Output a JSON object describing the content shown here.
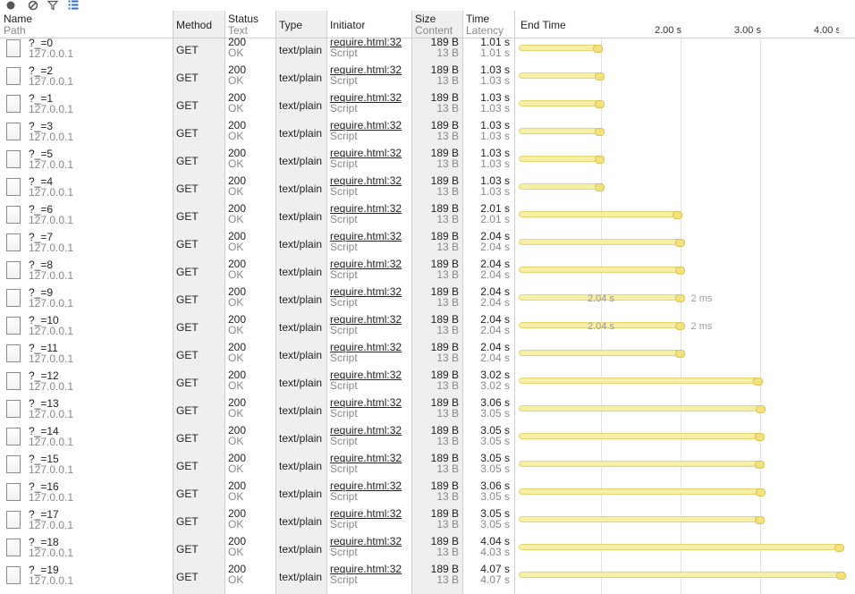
{
  "toolbar": {
    "record_icon": "record-icon",
    "clear_icon": "clear-icon",
    "filter_icon": "filter-icon",
    "large_rows_icon": "large-rows-icon"
  },
  "columns": {
    "name": "Name",
    "path": "Path",
    "method": "Method",
    "status": "Status",
    "text": "Text",
    "type": "Type",
    "initiator": "Initiator",
    "size": "Size",
    "content": "Content",
    "time": "Time",
    "latency": "Latency",
    "timeline": "End Time"
  },
  "timeline": {
    "ticks": [
      "2.00 s",
      "3.00 s",
      "4.00 s"
    ]
  },
  "rows": [
    {
      "name": "?_=0",
      "path": "127.0.0.1",
      "method": "GET",
      "status": "200",
      "status_text": "OK",
      "type": "text/plain",
      "initiator": "require.html:32",
      "initiator_type": "Script",
      "size": "189 B",
      "content": "13 B",
      "time": "1.01 s",
      "latency": "1.01 s",
      "end": 1.01
    },
    {
      "name": "?_=2",
      "path": "127.0.0.1",
      "method": "GET",
      "status": "200",
      "status_text": "OK",
      "type": "text/plain",
      "initiator": "require.html:32",
      "initiator_type": "Script",
      "size": "189 B",
      "content": "13 B",
      "time": "1.03 s",
      "latency": "1.03 s",
      "end": 1.03
    },
    {
      "name": "?_=1",
      "path": "127.0.0.1",
      "method": "GET",
      "status": "200",
      "status_text": "OK",
      "type": "text/plain",
      "initiator": "require.html:32",
      "initiator_type": "Script",
      "size": "189 B",
      "content": "13 B",
      "time": "1.03 s",
      "latency": "1.03 s",
      "end": 1.03
    },
    {
      "name": "?_=3",
      "path": "127.0.0.1",
      "method": "GET",
      "status": "200",
      "status_text": "OK",
      "type": "text/plain",
      "initiator": "require.html:32",
      "initiator_type": "Script",
      "size": "189 B",
      "content": "13 B",
      "time": "1.03 s",
      "latency": "1.03 s",
      "end": 1.03
    },
    {
      "name": "?_=5",
      "path": "127.0.0.1",
      "method": "GET",
      "status": "200",
      "status_text": "OK",
      "type": "text/plain",
      "initiator": "require.html:32",
      "initiator_type": "Script",
      "size": "189 B",
      "content": "13 B",
      "time": "1.03 s",
      "latency": "1.03 s",
      "end": 1.03
    },
    {
      "name": "?_=4",
      "path": "127.0.0.1",
      "method": "GET",
      "status": "200",
      "status_text": "OK",
      "type": "text/plain",
      "initiator": "require.html:32",
      "initiator_type": "Script",
      "size": "189 B",
      "content": "13 B",
      "time": "1.03 s",
      "latency": "1.03 s",
      "end": 1.03
    },
    {
      "name": "?_=6",
      "path": "127.0.0.1",
      "method": "GET",
      "status": "200",
      "status_text": "OK",
      "type": "text/plain",
      "initiator": "require.html:32",
      "initiator_type": "Script",
      "size": "189 B",
      "content": "13 B",
      "time": "2.01 s",
      "latency": "2.01 s",
      "end": 2.01
    },
    {
      "name": "?_=7",
      "path": "127.0.0.1",
      "method": "GET",
      "status": "200",
      "status_text": "OK",
      "type": "text/plain",
      "initiator": "require.html:32",
      "initiator_type": "Script",
      "size": "189 B",
      "content": "13 B",
      "time": "2.04 s",
      "latency": "2.04 s",
      "end": 2.04
    },
    {
      "name": "?_=8",
      "path": "127.0.0.1",
      "method": "GET",
      "status": "200",
      "status_text": "OK",
      "type": "text/plain",
      "initiator": "require.html:32",
      "initiator_type": "Script",
      "size": "189 B",
      "content": "13 B",
      "time": "2.04 s",
      "latency": "2.04 s",
      "end": 2.04
    },
    {
      "name": "?_=9",
      "path": "127.0.0.1",
      "method": "GET",
      "status": "200",
      "status_text": "OK",
      "type": "text/plain",
      "initiator": "require.html:32",
      "initiator_type": "Script",
      "size": "189 B",
      "content": "13 B",
      "time": "2.04 s",
      "latency": "2.04 s",
      "end": 2.04,
      "bar_left": "2.04 s",
      "bar_right": "2 ms"
    },
    {
      "name": "?_=10",
      "path": "127.0.0.1",
      "method": "GET",
      "status": "200",
      "status_text": "OK",
      "type": "text/plain",
      "initiator": "require.html:32",
      "initiator_type": "Script",
      "size": "189 B",
      "content": "13 B",
      "time": "2.04 s",
      "latency": "2.04 s",
      "end": 2.04,
      "bar_left": "2.04 s",
      "bar_right": "2 ms"
    },
    {
      "name": "?_=11",
      "path": "127.0.0.1",
      "method": "GET",
      "status": "200",
      "status_text": "OK",
      "type": "text/plain",
      "initiator": "require.html:32",
      "initiator_type": "Script",
      "size": "189 B",
      "content": "13 B",
      "time": "2.04 s",
      "latency": "2.04 s",
      "end": 2.04
    },
    {
      "name": "?_=12",
      "path": "127.0.0.1",
      "method": "GET",
      "status": "200",
      "status_text": "OK",
      "type": "text/plain",
      "initiator": "require.html:32",
      "initiator_type": "Script",
      "size": "189 B",
      "content": "13 B",
      "time": "3.02 s",
      "latency": "3.02 s",
      "end": 3.02
    },
    {
      "name": "?_=13",
      "path": "127.0.0.1",
      "method": "GET",
      "status": "200",
      "status_text": "OK",
      "type": "text/plain",
      "initiator": "require.html:32",
      "initiator_type": "Script",
      "size": "189 B",
      "content": "13 B",
      "time": "3.06 s",
      "latency": "3.05 s",
      "end": 3.06
    },
    {
      "name": "?_=14",
      "path": "127.0.0.1",
      "method": "GET",
      "status": "200",
      "status_text": "OK",
      "type": "text/plain",
      "initiator": "require.html:32",
      "initiator_type": "Script",
      "size": "189 B",
      "content": "13 B",
      "time": "3.05 s",
      "latency": "3.05 s",
      "end": 3.05
    },
    {
      "name": "?_=15",
      "path": "127.0.0.1",
      "method": "GET",
      "status": "200",
      "status_text": "OK",
      "type": "text/plain",
      "initiator": "require.html:32",
      "initiator_type": "Script",
      "size": "189 B",
      "content": "13 B",
      "time": "3.05 s",
      "latency": "3.05 s",
      "end": 3.05
    },
    {
      "name": "?_=16",
      "path": "127.0.0.1",
      "method": "GET",
      "status": "200",
      "status_text": "OK",
      "type": "text/plain",
      "initiator": "require.html:32",
      "initiator_type": "Script",
      "size": "189 B",
      "content": "13 B",
      "time": "3.06 s",
      "latency": "3.05 s",
      "end": 3.06
    },
    {
      "name": "?_=17",
      "path": "127.0.0.1",
      "method": "GET",
      "status": "200",
      "status_text": "OK",
      "type": "text/plain",
      "initiator": "require.html:32",
      "initiator_type": "Script",
      "size": "189 B",
      "content": "13 B",
      "time": "3.05 s",
      "latency": "3.05 s",
      "end": 3.05
    },
    {
      "name": "?_=18",
      "path": "127.0.0.1",
      "method": "GET",
      "status": "200",
      "status_text": "OK",
      "type": "text/plain",
      "initiator": "require.html:32",
      "initiator_type": "Script",
      "size": "189 B",
      "content": "13 B",
      "time": "4.04 s",
      "latency": "4.03 s",
      "end": 4.04
    },
    {
      "name": "?_=19",
      "path": "127.0.0.1",
      "method": "GET",
      "status": "200",
      "status_text": "OK",
      "type": "text/plain",
      "initiator": "require.html:32",
      "initiator_type": "Script",
      "size": "189 B",
      "content": "13 B",
      "time": "4.07 s",
      "latency": "4.07 s",
      "end": 4.07
    }
  ]
}
